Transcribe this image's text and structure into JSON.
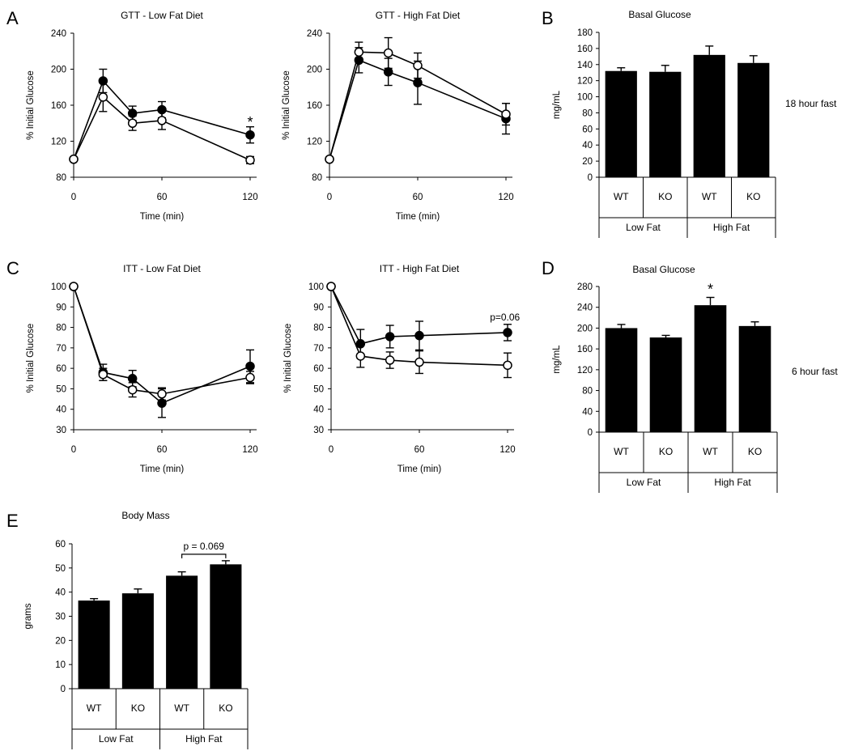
{
  "panel_labels": [
    "A",
    "B",
    "C",
    "D",
    "E"
  ],
  "chart_data": [
    {
      "id": "gtt_low",
      "type": "line",
      "title": "GTT - Low Fat Diet",
      "xlabel": "Time (min)",
      "ylabel": "% Initial Glucose",
      "xlim": [
        0,
        120
      ],
      "ylim": [
        80,
        240
      ],
      "xticks": [
        0,
        60,
        120
      ],
      "yticks": [
        80,
        120,
        160,
        200,
        240
      ],
      "series": [
        {
          "name": "filled",
          "marker": "filled",
          "x": [
            0,
            20,
            40,
            60,
            120
          ],
          "y": [
            100,
            187,
            151,
            155,
            127
          ],
          "err": [
            0,
            13,
            8,
            9,
            9
          ]
        },
        {
          "name": "open",
          "marker": "open",
          "x": [
            0,
            20,
            40,
            60,
            120
          ],
          "y": [
            100,
            169,
            140,
            143,
            99
          ],
          "err": [
            0,
            16,
            8,
            10,
            4
          ]
        }
      ],
      "annotations": [
        {
          "text": "*",
          "x": 120,
          "y": 143,
          "kind": "star"
        }
      ]
    },
    {
      "id": "gtt_high",
      "type": "line",
      "title": "GTT - High Fat Diet",
      "xlabel": "Time (min)",
      "ylabel": "% Initial Glucose",
      "xlim": [
        0,
        120
      ],
      "ylim": [
        80,
        240
      ],
      "xticks": [
        0,
        60,
        120
      ],
      "yticks": [
        80,
        120,
        160,
        200,
        240
      ],
      "series": [
        {
          "name": "filled",
          "marker": "filled",
          "x": [
            0,
            20,
            40,
            60,
            120
          ],
          "y": [
            100,
            210,
            197,
            185,
            145
          ],
          "err": [
            0,
            14,
            15,
            24,
            17
          ]
        },
        {
          "name": "open",
          "marker": "open",
          "x": [
            0,
            20,
            40,
            60,
            120
          ],
          "y": [
            100,
            219,
            218,
            204,
            150
          ],
          "err": [
            0,
            11,
            17,
            14,
            12
          ]
        }
      ],
      "annotations": []
    },
    {
      "id": "basal_18h",
      "type": "bar",
      "title": "Basal Glucose",
      "ylabel": "mg/mL",
      "ylim": [
        0,
        180
      ],
      "yticks": [
        0,
        20,
        40,
        60,
        80,
        100,
        120,
        140,
        160,
        180
      ],
      "categories": [
        "WT",
        "KO",
        "WT",
        "KO"
      ],
      "groups": [
        "Low Fat",
        "High Fat"
      ],
      "values": [
        132,
        131,
        152,
        142
      ],
      "err": [
        4,
        8,
        11,
        9
      ],
      "side_note": "18 hour fast",
      "annotations": []
    },
    {
      "id": "itt_low",
      "type": "line",
      "title": "ITT - Low Fat Diet",
      "xlabel": "Time (min)",
      "ylabel": "% Initial Glucose",
      "xlim": [
        0,
        120
      ],
      "ylim": [
        30,
        100
      ],
      "xticks": [
        0,
        60,
        120
      ],
      "yticks": [
        30,
        40,
        50,
        60,
        70,
        80,
        90,
        100
      ],
      "series": [
        {
          "name": "filled",
          "marker": "filled",
          "x": [
            0,
            20,
            40,
            60,
            120
          ],
          "y": [
            100,
            58,
            55,
            43,
            61
          ],
          "err": [
            0,
            4,
            4,
            7,
            8
          ]
        },
        {
          "name": "open",
          "marker": "open",
          "x": [
            0,
            20,
            40,
            60,
            120
          ],
          "y": [
            100,
            57,
            49.5,
            47.5,
            55.5
          ],
          "err": [
            0,
            3,
            3.5,
            3,
            3
          ]
        }
      ],
      "annotations": []
    },
    {
      "id": "itt_high",
      "type": "line",
      "title": "ITT - High Fat Diet",
      "xlabel": "Time (min)",
      "ylabel": "% Initial Glucose",
      "xlim": [
        0,
        120
      ],
      "ylim": [
        30,
        100
      ],
      "xticks": [
        0,
        60,
        120
      ],
      "yticks": [
        30,
        40,
        50,
        60,
        70,
        80,
        90,
        100
      ],
      "series": [
        {
          "name": "filled",
          "marker": "filled",
          "x": [
            0,
            20,
            40,
            60,
            120
          ],
          "y": [
            100,
            72,
            75.5,
            76,
            77.5
          ],
          "err": [
            0,
            7,
            5.5,
            7,
            4
          ]
        },
        {
          "name": "open",
          "marker": "open",
          "x": [
            0,
            20,
            40,
            60,
            120
          ],
          "y": [
            100,
            66,
            64,
            63,
            61.5
          ],
          "err": [
            0,
            5.5,
            4,
            5.5,
            6
          ]
        }
      ],
      "annotations": [
        {
          "text": "p=0.06",
          "x": 108,
          "y": 85,
          "kind": "text"
        }
      ]
    },
    {
      "id": "basal_6h",
      "type": "bar",
      "title": "Basal Glucose",
      "ylabel": "mg/mL",
      "ylim": [
        0,
        280
      ],
      "yticks": [
        0,
        40,
        80,
        120,
        160,
        200,
        240,
        280
      ],
      "categories": [
        "WT",
        "KO",
        "WT",
        "KO"
      ],
      "groups": [
        "Low Fat",
        "High Fat"
      ],
      "values": [
        200,
        182,
        244,
        204
      ],
      "err": [
        7,
        4,
        15,
        8
      ],
      "side_note": "6 hour fast",
      "annotations": [
        {
          "text": "*",
          "category": 2,
          "kind": "star"
        }
      ]
    },
    {
      "id": "body_mass",
      "type": "bar",
      "title": "Body Mass",
      "ylabel": "grams",
      "ylim": [
        0,
        60
      ],
      "yticks": [
        0,
        10,
        20,
        30,
        40,
        50,
        60
      ],
      "categories": [
        "WT",
        "KO",
        "WT",
        "KO"
      ],
      "groups": [
        "Low Fat",
        "High Fat"
      ],
      "values": [
        36.5,
        39.5,
        46.8,
        51.5
      ],
      "err": [
        0.8,
        1.8,
        1.6,
        1.5
      ],
      "side_note": "",
      "annotations": [
        {
          "text": "p = 0.069",
          "from": 2,
          "to": 3,
          "kind": "bracket"
        }
      ]
    }
  ]
}
